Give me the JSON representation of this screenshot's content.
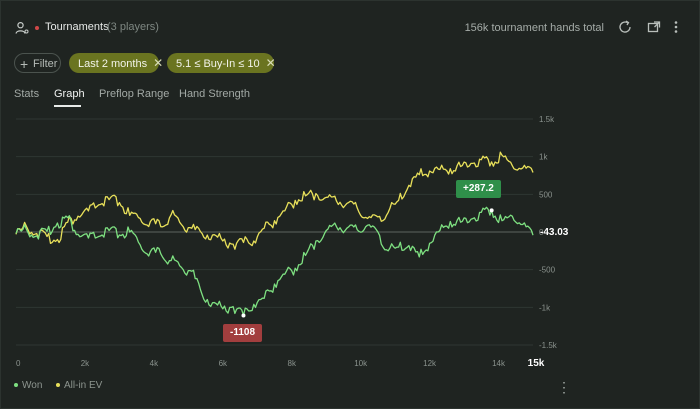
{
  "header": {
    "title": "Tournaments",
    "players": "(3 players)",
    "total": "156k tournament hands total"
  },
  "filters": {
    "add_label": "Filter",
    "chips": [
      "Last 2 months",
      "5.1 ≤ Buy-In ≤ 10"
    ]
  },
  "tabs": [
    "Stats",
    "Graph",
    "Preflop Range",
    "Hand Strength"
  ],
  "active_tab": "Graph",
  "colors": {
    "won": "#7ee081",
    "ev": "#e8e05a",
    "accent_chip": "#6a7420",
    "max_badge": "#2f8f4a",
    "min_badge": "#a23e3e"
  },
  "chart_data": {
    "type": "line",
    "x_ticks": [
      "0",
      "2k",
      "4k",
      "6k",
      "8k",
      "10k",
      "12k",
      "14k",
      "15k"
    ],
    "x_tick_values": [
      0,
      2000,
      4000,
      6000,
      8000,
      10000,
      12000,
      14000,
      15000
    ],
    "y_ticks": [
      "1.5k",
      "1k",
      "500",
      "0",
      "-500",
      "-1k",
      "-1.5k"
    ],
    "y_tick_values": [
      1500,
      1000,
      500,
      0,
      -500,
      -1000,
      -1500
    ],
    "xlim": [
      0,
      15000
    ],
    "ylim": [
      -1500,
      1500
    ],
    "series": [
      {
        "name": "Won",
        "color": "#7ee081",
        "x": [
          0,
          300,
          600,
          900,
          1200,
          1500,
          1800,
          2100,
          2400,
          2700,
          3000,
          3300,
          3600,
          3900,
          4200,
          4500,
          4800,
          5100,
          5400,
          5700,
          6000,
          6300,
          6600,
          6900,
          7200,
          7500,
          7800,
          8100,
          8400,
          8700,
          9000,
          9300,
          9600,
          9900,
          10200,
          10500,
          10800,
          11100,
          11400,
          11700,
          12000,
          12300,
          12600,
          12900,
          13200,
          13500,
          13800,
          14100,
          14400,
          14700,
          15000
        ],
        "y": [
          -20,
          40,
          -50,
          10,
          120,
          190,
          -30,
          -80,
          -60,
          20,
          -40,
          0,
          -170,
          -260,
          -290,
          -380,
          -470,
          -520,
          -830,
          -940,
          -1020,
          -990,
          -1108,
          -960,
          -880,
          -690,
          -560,
          -480,
          -310,
          -120,
          20,
          70,
          50,
          30,
          90,
          0,
          -250,
          -200,
          -180,
          -330,
          -150,
          20,
          140,
          130,
          170,
          260,
          287,
          150,
          210,
          100,
          -43
        ],
        "annotation_max": "+287.2",
        "annotation_min": "-1108",
        "last_value": "-43.03"
      },
      {
        "name": "All-in EV",
        "color": "#e8e05a",
        "x": [
          0,
          300,
          600,
          900,
          1200,
          1500,
          1800,
          2100,
          2400,
          2700,
          3000,
          3300,
          3600,
          3900,
          4200,
          4500,
          4800,
          5100,
          5400,
          5700,
          6000,
          6300,
          6600,
          6900,
          7200,
          7500,
          7800,
          8100,
          8400,
          8700,
          9000,
          9300,
          9600,
          9900,
          10200,
          10500,
          10800,
          11100,
          11400,
          11700,
          12000,
          12300,
          12600,
          12900,
          13200,
          13500,
          13800,
          14100,
          14400,
          14700,
          15000
        ],
        "y": [
          -30,
          80,
          -20,
          -60,
          -100,
          130,
          210,
          280,
          360,
          430,
          390,
          220,
          180,
          140,
          70,
          230,
          100,
          50,
          -20,
          -40,
          -120,
          -160,
          -140,
          -120,
          50,
          150,
          280,
          420,
          480,
          510,
          460,
          410,
          380,
          320,
          180,
          200,
          260,
          420,
          620,
          760,
          810,
          830,
          840,
          870,
          910,
          960,
          930,
          1020,
          880,
          850,
          790
        ]
      }
    ],
    "legend": [
      "Won",
      "All-in EV"
    ],
    "legend_position": "bottom-left",
    "grid": true
  }
}
